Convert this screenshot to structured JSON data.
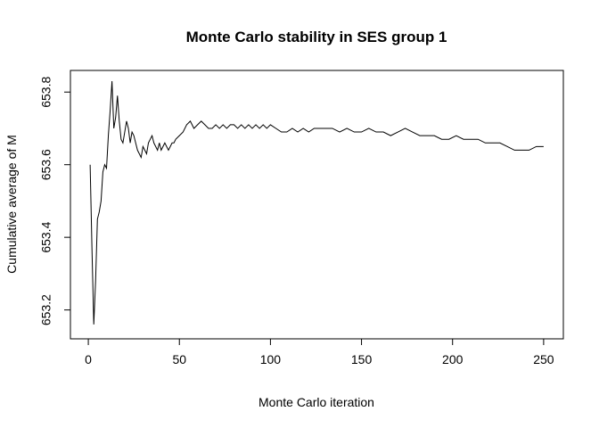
{
  "chart_data": {
    "type": "line",
    "title": "Monte Carlo stability in SES group 1",
    "xlabel": "Monte Carlo iteration",
    "ylabel": "Cumulative average of M",
    "xlim": [
      1,
      250
    ],
    "ylim": [
      653.15,
      653.83
    ],
    "x_ticks": [
      0,
      50,
      100,
      150,
      200,
      250
    ],
    "y_ticks": [
      653.2,
      653.4,
      653.6,
      653.8
    ],
    "x_tick_labels": [
      "0",
      "50",
      "100",
      "150",
      "200",
      "250"
    ],
    "y_tick_labels": [
      "653.2",
      "653.4",
      "653.6",
      "653.8"
    ],
    "grid": false,
    "legend": "none",
    "line_color": "#000000",
    "series": [
      {
        "x": [
          1,
          2,
          3,
          4,
          5,
          6,
          7,
          8,
          9,
          10,
          11,
          12,
          13,
          14,
          15,
          16,
          17,
          18,
          19,
          20,
          21,
          22,
          23,
          24,
          25,
          26,
          27,
          28,
          29,
          30,
          31,
          32,
          33,
          34,
          35,
          36,
          37,
          38,
          39,
          40,
          41,
          42,
          43,
          44,
          45,
          46,
          47,
          48,
          50,
          52,
          54,
          56,
          58,
          60,
          62,
          64,
          66,
          68,
          70,
          72,
          74,
          76,
          78,
          80,
          82,
          84,
          86,
          88,
          90,
          92,
          94,
          96,
          98,
          100,
          103,
          106,
          109,
          112,
          115,
          118,
          121,
          124,
          127,
          130,
          134,
          138,
          142,
          146,
          150,
          154,
          158,
          162,
          166,
          170,
          174,
          178,
          182,
          186,
          190,
          194,
          198,
          202,
          206,
          210,
          214,
          218,
          222,
          226,
          230,
          234,
          238,
          242,
          246,
          250
        ],
        "values": [
          653.6,
          653.37,
          653.16,
          653.28,
          653.45,
          653.47,
          653.5,
          653.58,
          653.6,
          653.59,
          653.68,
          653.75,
          653.83,
          653.7,
          653.73,
          653.79,
          653.72,
          653.67,
          653.66,
          653.69,
          653.72,
          653.7,
          653.66,
          653.69,
          653.68,
          653.66,
          653.64,
          653.63,
          653.62,
          653.65,
          653.64,
          653.63,
          653.66,
          653.67,
          653.68,
          653.66,
          653.65,
          653.64,
          653.66,
          653.64,
          653.65,
          653.66,
          653.65,
          653.64,
          653.65,
          653.66,
          653.66,
          653.67,
          653.68,
          653.69,
          653.71,
          653.72,
          653.7,
          653.71,
          653.72,
          653.71,
          653.7,
          653.7,
          653.71,
          653.7,
          653.71,
          653.7,
          653.71,
          653.71,
          653.7,
          653.71,
          653.7,
          653.71,
          653.7,
          653.71,
          653.7,
          653.71,
          653.7,
          653.71,
          653.7,
          653.69,
          653.69,
          653.7,
          653.69,
          653.7,
          653.69,
          653.7,
          653.7,
          653.7,
          653.7,
          653.69,
          653.7,
          653.69,
          653.69,
          653.7,
          653.69,
          653.69,
          653.68,
          653.69,
          653.7,
          653.69,
          653.68,
          653.68,
          653.68,
          653.67,
          653.67,
          653.68,
          653.67,
          653.67,
          653.67,
          653.66,
          653.66,
          653.66,
          653.65,
          653.64,
          653.64,
          653.64,
          653.65,
          653.65
        ]
      }
    ]
  }
}
